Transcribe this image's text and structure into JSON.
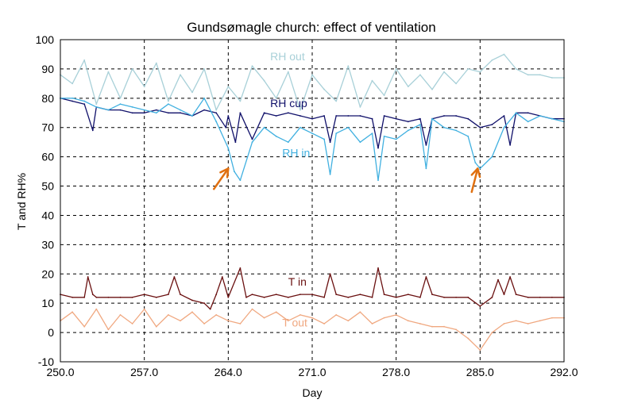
{
  "chart_data": {
    "type": "line",
    "title": "Gundsømagle church: effect of ventilation",
    "xlabel": "Day",
    "ylabel": "T and RH%",
    "xlim": [
      250,
      292
    ],
    "ylim": [
      -10,
      100
    ],
    "x_ticks": [
      "250.0",
      "257.0",
      "264.0",
      "271.0",
      "278.0",
      "285.0",
      "292.0"
    ],
    "y_ticks": [
      "-10",
      "0",
      "10",
      "20",
      "30",
      "40",
      "50",
      "60",
      "70",
      "80",
      "90",
      "100"
    ],
    "grid": true,
    "series": [
      {
        "name": "RH out",
        "color": "#a8d0d8",
        "label_at": [
          267.5,
          93
        ],
        "x": [
          250,
          251,
          252,
          253,
          254,
          255,
          256,
          257,
          258,
          259,
          260,
          261,
          262,
          263,
          264,
          265,
          266,
          267,
          268,
          269,
          270,
          271,
          272,
          273,
          274,
          275,
          276,
          277,
          278,
          279,
          280,
          281,
          282,
          283,
          284,
          285,
          286,
          287,
          288,
          289,
          290,
          291,
          292
        ],
        "values": [
          88,
          85,
          93,
          78,
          89,
          80,
          90,
          84,
          92,
          79,
          88,
          82,
          90,
          76,
          84,
          79,
          91,
          86,
          80,
          89,
          76,
          88,
          83,
          79,
          91,
          77,
          86,
          81,
          90,
          84,
          88,
          83,
          89,
          85,
          90,
          89,
          93,
          95,
          90,
          88,
          88,
          87,
          87
        ]
      },
      {
        "name": "RH cup",
        "color": "#10106a",
        "label_at": [
          267.5,
          77
        ],
        "x": [
          250,
          251,
          252,
          252.7,
          253,
          254,
          255,
          256,
          257,
          258,
          259,
          260,
          261,
          262,
          263,
          263.8,
          264,
          264.6,
          265,
          266,
          267,
          268,
          269,
          270,
          271,
          272,
          272.5,
          273,
          274,
          275,
          276,
          276.5,
          277,
          278,
          279,
          280,
          280.5,
          281,
          282,
          283,
          284,
          285,
          286,
          287,
          287.5,
          288,
          289,
          290,
          291,
          292
        ],
        "values": [
          80,
          79,
          78,
          69,
          77,
          76,
          76,
          75,
          75,
          76,
          75,
          75,
          74,
          76,
          75,
          70,
          74,
          65,
          75,
          66,
          75,
          74,
          75,
          74,
          73,
          74,
          65,
          74,
          74,
          74,
          73,
          63,
          74,
          73,
          72,
          73,
          64,
          73,
          74,
          74,
          73,
          70,
          71,
          74,
          64,
          75,
          75,
          74,
          73,
          73
        ]
      },
      {
        "name": "RH in",
        "color": "#40b0e0",
        "label_at": [
          268.5,
          60
        ],
        "x": [
          250,
          251,
          252,
          253,
          254,
          255,
          256,
          257,
          258,
          259,
          260,
          261,
          262,
          263,
          264,
          264.5,
          265,
          266,
          267,
          268,
          269,
          270,
          271,
          272,
          272.5,
          273,
          274,
          275,
          276,
          276.5,
          277,
          278,
          279,
          280,
          280.5,
          281,
          282,
          283,
          284,
          284.6,
          285,
          286,
          287,
          288,
          289,
          290,
          291,
          292
        ],
        "values": [
          80,
          80,
          79,
          77,
          76,
          78,
          77,
          76,
          75,
          78,
          76,
          74,
          80,
          72,
          63,
          55,
          52,
          65,
          70,
          67,
          65,
          70,
          68,
          66,
          54,
          68,
          70,
          65,
          68,
          52,
          67,
          66,
          69,
          71,
          56,
          73,
          70,
          69,
          67,
          58,
          56,
          60,
          70,
          75,
          72,
          74,
          73,
          72
        ]
      },
      {
        "name": "T in",
        "color": "#6a1010",
        "label_at": [
          269,
          16
        ],
        "x": [
          250,
          251,
          252,
          252.3,
          252.7,
          253,
          254,
          255,
          256,
          257,
          258,
          259,
          259.5,
          260,
          261,
          262,
          262.5,
          263,
          263.5,
          264,
          265,
          265.5,
          266,
          267,
          268,
          269,
          270,
          271,
          272,
          272.5,
          273,
          274,
          275,
          276,
          276.5,
          277,
          278,
          279,
          280,
          280.5,
          281,
          282,
          283,
          284,
          285,
          286,
          286.5,
          287,
          287.5,
          288,
          289,
          290,
          291,
          292
        ],
        "values": [
          13,
          12,
          12,
          19,
          13,
          12,
          12,
          12,
          12,
          13,
          12,
          13,
          19,
          13,
          11,
          10,
          8,
          13,
          19,
          12,
          22,
          12,
          13,
          12,
          13,
          12,
          13,
          13,
          12,
          20,
          13,
          12,
          13,
          12,
          22,
          13,
          12,
          13,
          12,
          19,
          13,
          12,
          12,
          12,
          9,
          12,
          18,
          13,
          19,
          13,
          12,
          12,
          12,
          12
        ]
      },
      {
        "name": "T out",
        "color": "#f0a880",
        "label_at": [
          268.5,
          2
        ],
        "x": [
          250,
          251,
          252,
          253,
          254,
          255,
          256,
          257,
          258,
          259,
          260,
          261,
          262,
          263,
          264,
          265,
          266,
          267,
          268,
          269,
          270,
          271,
          272,
          273,
          274,
          275,
          276,
          277,
          278,
          279,
          280,
          281,
          282,
          283,
          284,
          285,
          286,
          287,
          288,
          289,
          290,
          291,
          292
        ],
        "values": [
          4,
          7,
          2,
          8,
          1,
          6,
          3,
          8,
          2,
          6,
          4,
          7,
          3,
          6,
          4,
          3,
          8,
          5,
          7,
          4,
          6,
          5,
          3,
          6,
          4,
          7,
          3,
          5,
          6,
          4,
          3,
          2,
          2,
          1,
          -2,
          -6,
          0,
          3,
          4,
          3,
          4,
          5,
          5
        ]
      }
    ],
    "annotations": [
      {
        "type": "arrow",
        "color": "#e07010",
        "from": [
          262.8,
          49
        ],
        "to": [
          264.0,
          56
        ]
      },
      {
        "type": "arrow",
        "color": "#e07010",
        "from": [
          284.3,
          48
        ],
        "to": [
          284.8,
          56
        ]
      }
    ]
  }
}
